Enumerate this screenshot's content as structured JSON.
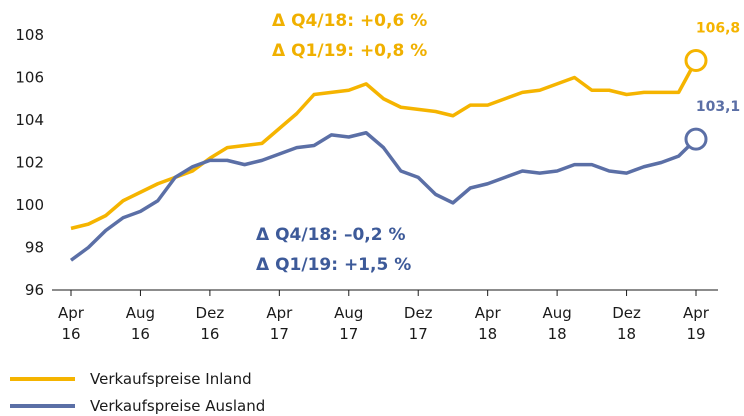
{
  "chart_data": {
    "type": "line",
    "categories": [
      "Apr 16",
      null,
      null,
      null,
      "Aug 16",
      null,
      null,
      null,
      "Dez 16",
      null,
      null,
      null,
      "Apr 17",
      null,
      null,
      null,
      "Aug 17",
      null,
      null,
      null,
      "Dez 17",
      null,
      null,
      null,
      "Apr 18",
      null,
      null,
      null,
      "Aug 18",
      null,
      null,
      null,
      "Dez 18",
      null,
      null,
      null,
      "Apr 19"
    ],
    "series": [
      {
        "name": "Verkaufspreise Inland",
        "color": "#f5b400",
        "values": [
          98.9,
          99.1,
          99.5,
          100.2,
          100.6,
          101.0,
          101.3,
          101.6,
          102.2,
          102.7,
          102.8,
          102.9,
          103.6,
          104.3,
          105.2,
          105.3,
          105.4,
          105.7,
          105.0,
          104.6,
          104.5,
          104.4,
          104.2,
          104.7,
          104.7,
          105.0,
          105.3,
          105.4,
          105.7,
          106.0,
          105.4,
          105.4,
          105.2,
          105.3,
          105.3,
          105.3,
          106.8
        ],
        "value_labels": [
          null,
          null,
          null,
          null,
          null,
          null,
          null,
          null,
          null,
          null,
          null,
          null,
          null,
          null,
          null,
          null,
          null,
          null,
          null,
          null,
          null,
          null,
          null,
          null,
          null,
          null,
          null,
          null,
          null,
          null,
          null,
          null,
          null,
          null,
          null,
          null,
          "106,8"
        ]
      },
      {
        "name": "Verkaufspreise Ausland",
        "color": "#5b6fa6",
        "values": [
          97.4,
          98.0,
          98.8,
          99.4,
          99.7,
          100.2,
          101.3,
          101.8,
          102.1,
          102.1,
          101.9,
          102.1,
          102.4,
          102.7,
          102.8,
          103.3,
          103.2,
          103.4,
          102.7,
          101.6,
          101.3,
          100.5,
          100.1,
          100.8,
          101.0,
          101.3,
          101.6,
          101.5,
          101.6,
          101.9,
          101.9,
          101.6,
          101.5,
          101.8,
          102.0,
          102.3,
          103.1
        ],
        "value_labels": [
          null,
          null,
          null,
          null,
          null,
          null,
          null,
          null,
          null,
          null,
          null,
          null,
          null,
          null,
          null,
          null,
          null,
          null,
          null,
          null,
          null,
          null,
          null,
          null,
          null,
          null,
          null,
          null,
          null,
          null,
          null,
          null,
          null,
          null,
          null,
          null,
          "103,1"
        ]
      }
    ],
    "annotations": [
      {
        "text": "Δ Q4/18: +0,6 %",
        "color": "#f0b000"
      },
      {
        "text": "Δ Q1/19: +0,8 %",
        "color": "#f0b000"
      },
      {
        "text": "Δ Q4/18: –0,2 %",
        "color": "#3d5a99"
      },
      {
        "text": "Δ Q1/19: +1,5 %",
        "color": "#3d5a99"
      }
    ],
    "ylim": [
      96,
      108
    ],
    "yticks": [
      96,
      98,
      100,
      102,
      104,
      106,
      108
    ],
    "grid": false
  }
}
